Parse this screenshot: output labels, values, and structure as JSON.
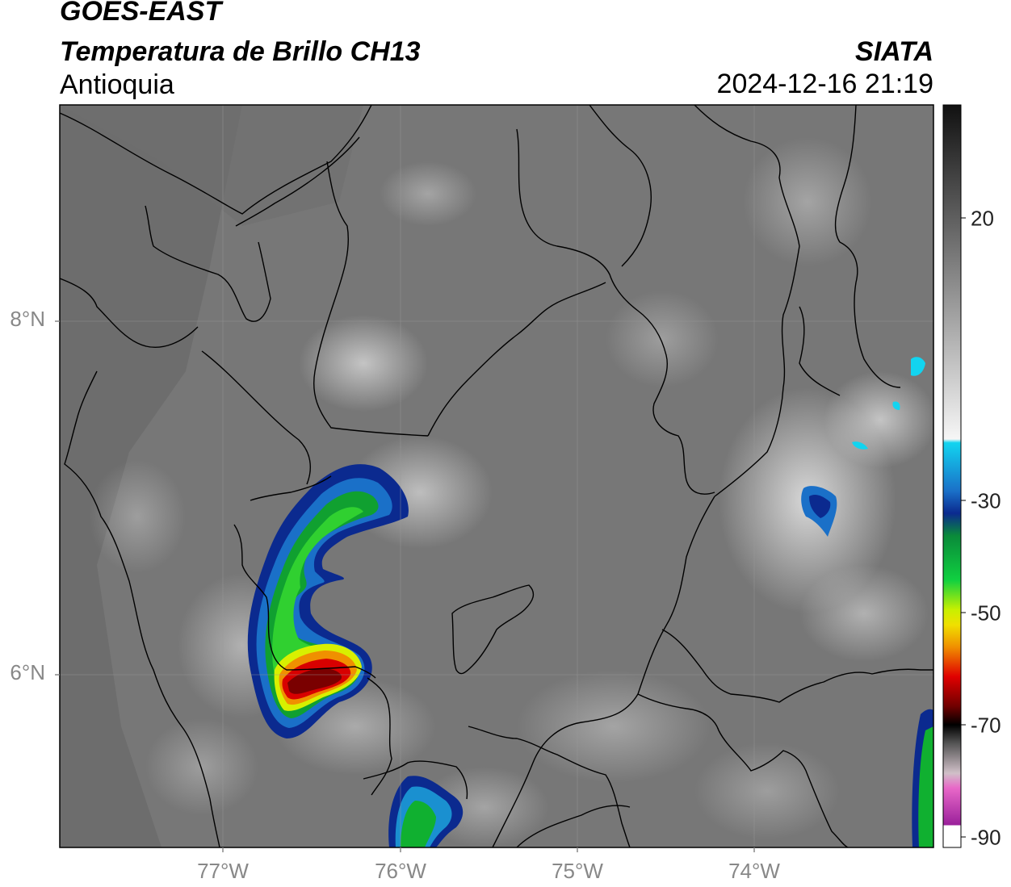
{
  "header": {
    "satellite": "GOES-EAST",
    "product": "Temperatura de Brillo CH13",
    "region": "Antioquia",
    "organization": "SIATA",
    "timestamp": "2024-12-16 21:19"
  },
  "map": {
    "lat_labels": [
      "8°N",
      "6°N"
    ],
    "lon_labels": [
      "77°W",
      "76°W",
      "75°W",
      "74°W"
    ],
    "background_gray": "#777777"
  },
  "colorbar": {
    "ticks": [
      "20",
      "-30",
      "-50",
      "-70",
      "-90"
    ],
    "colors": {
      "warm": "#111111",
      "mid": "#9a9a9a",
      "light": "#f4f4f4",
      "cyan": "#12d4f0",
      "blue": "#0b2a8f",
      "green": "#10b030",
      "yellow": "#f0f000",
      "orange": "#f08a00",
      "red": "#d80000",
      "darkred": "#5a0000",
      "pink": "#e060c0",
      "purple": "#8a1a8a"
    }
  }
}
